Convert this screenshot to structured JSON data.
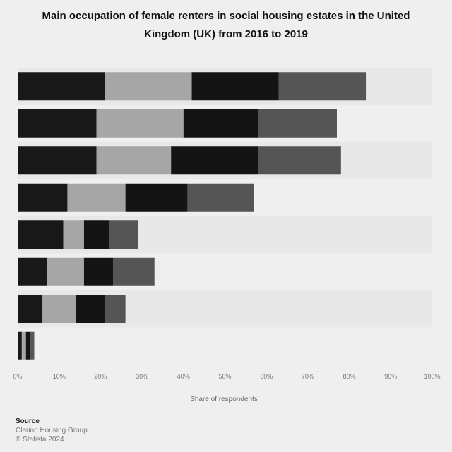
{
  "title": "Main occupation of female renters in social housing estates in the United Kingdom (UK) from 2016 to 2019",
  "source": {
    "label": "Source",
    "lines": [
      "Clarion Housing Group",
      "© Statista 2024"
    ]
  },
  "colors": {
    "background": "#efefef",
    "band_alt": "#e8e8e8",
    "series": [
      "#181818",
      "#a6a6a6",
      "#141414",
      "#555555"
    ]
  },
  "chart_data": {
    "type": "bar",
    "orientation": "horizontal",
    "stacked": true,
    "categories": [
      "",
      "",
      "",
      "",
      "",
      "",
      "",
      ""
    ],
    "series": [
      {
        "values": [
          21.0,
          19.0,
          19.0,
          12.0,
          11.0,
          7.0,
          6.0,
          1.0
        ]
      },
      {
        "values": [
          21.0,
          21.0,
          18.0,
          14.0,
          5.0,
          9.0,
          8.0,
          1.0
        ]
      },
      {
        "values": [
          21.0,
          18.0,
          21.0,
          15.0,
          6.0,
          7.0,
          7.0,
          1.0
        ]
      },
      {
        "values": [
          21.0,
          19.0,
          20.0,
          16.0,
          7.0,
          10.0,
          5.0,
          1.0
        ]
      }
    ],
    "xlim": [
      0,
      100
    ],
    "xticks": [
      "0%",
      "10%",
      "20%",
      "30%",
      "40%",
      "50%",
      "60%",
      "70%",
      "80%",
      "90%",
      "100%"
    ],
    "xlabel": "Share of respondents",
    "ylabel": "",
    "grid": false,
    "legend": "none"
  }
}
